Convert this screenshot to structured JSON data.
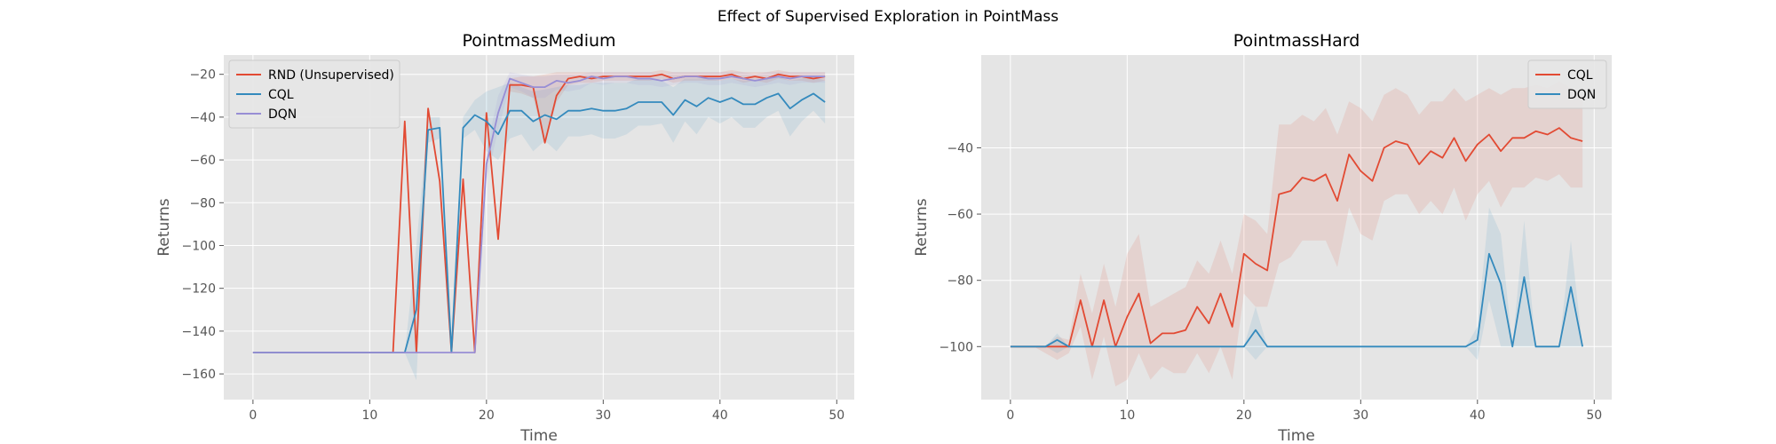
{
  "suptitle": "Effect of Supervised Exploration in PointMass",
  "colors": {
    "red": "#e24a33",
    "blue": "#348abd",
    "purple": "#988ed5",
    "panel_bg": "#e5e5e5",
    "grid": "#ffffff"
  },
  "chart_data": [
    {
      "type": "line",
      "title": "PointmassMedium",
      "xlabel": "Time",
      "ylabel": "Returns",
      "xlim": [
        -2.5,
        51.5
      ],
      "ylim": [
        -172,
        -11
      ],
      "xticks": [
        0,
        10,
        20,
        30,
        40,
        50
      ],
      "yticks": [
        -160,
        -140,
        -120,
        -100,
        -80,
        -60,
        -40,
        -20
      ],
      "grid": true,
      "legend_position": "top-left",
      "x": [
        0,
        1,
        2,
        3,
        4,
        5,
        6,
        7,
        8,
        9,
        10,
        11,
        12,
        13,
        14,
        15,
        16,
        17,
        18,
        19,
        20,
        21,
        22,
        23,
        24,
        25,
        26,
        27,
        28,
        29,
        30,
        31,
        32,
        33,
        34,
        35,
        36,
        37,
        38,
        39,
        40,
        41,
        42,
        43,
        44,
        45,
        46,
        47,
        48,
        49
      ],
      "series": [
        {
          "name": "RND (Unsupervised)",
          "color": "#e24a33",
          "values": [
            -150,
            -150,
            -150,
            -150,
            -150,
            -150,
            -150,
            -150,
            -150,
            -150,
            -150,
            -150,
            -150,
            -42,
            -150,
            -36,
            -70,
            -150,
            -69,
            -150,
            -38,
            -97,
            -25,
            -25,
            -26,
            -52,
            -30,
            -22,
            -21,
            -22,
            -21,
            -21,
            -21,
            -21,
            -21,
            -20,
            -22,
            -21,
            -21,
            -21,
            -21,
            -20,
            -22,
            -21,
            -22,
            -20,
            -21,
            -21,
            -22,
            -21
          ],
          "band_upper": [
            -150,
            -150,
            -150,
            -150,
            -150,
            -150,
            -150,
            -150,
            -150,
            -150,
            -150,
            -150,
            -150,
            -42,
            -150,
            -36,
            -70,
            -150,
            -69,
            -150,
            -38,
            -97,
            -22,
            -21,
            -21,
            -20,
            -19,
            -19,
            -19,
            -19,
            -19,
            -19,
            -19,
            -19,
            -19,
            -18,
            -19,
            -19,
            -19,
            -19,
            -19,
            -18,
            -19,
            -19,
            -19,
            -18,
            -19,
            -19,
            -19,
            -19
          ],
          "band_lower": [
            -150,
            -150,
            -150,
            -150,
            -150,
            -150,
            -150,
            -150,
            -150,
            -150,
            -150,
            -150,
            -150,
            -42,
            -150,
            -36,
            -70,
            -150,
            -69,
            -150,
            -38,
            -97,
            -28,
            -29,
            -31,
            -52,
            -33,
            -25,
            -24,
            -24,
            -23,
            -23,
            -23,
            -23,
            -23,
            -22,
            -24,
            -23,
            -23,
            -23,
            -23,
            -22,
            -24,
            -23,
            -24,
            -22,
            -23,
            -23,
            -24,
            -23
          ]
        },
        {
          "name": "CQL",
          "color": "#348abd",
          "values": [
            -150,
            -150,
            -150,
            -150,
            -150,
            -150,
            -150,
            -150,
            -150,
            -150,
            -150,
            -150,
            -150,
            -150,
            -130,
            -46,
            -45,
            -150,
            -45,
            -39,
            -42,
            -48,
            -37,
            -37,
            -42,
            -39,
            -41,
            -37,
            -37,
            -36,
            -37,
            -37,
            -36,
            -33,
            -33,
            -33,
            -39,
            -32,
            -35,
            -31,
            -33,
            -31,
            -34,
            -34,
            -31,
            -29,
            -36,
            -32,
            -29,
            -33
          ],
          "band_upper": [
            -150,
            -150,
            -150,
            -150,
            -150,
            -150,
            -150,
            -150,
            -150,
            -150,
            -150,
            -150,
            -150,
            -150,
            -100,
            -40,
            -40,
            -150,
            -40,
            -32,
            -28,
            -26,
            -24,
            -26,
            -28,
            -27,
            -26,
            -25,
            -25,
            -24,
            -24,
            -24,
            -24,
            -22,
            -22,
            -23,
            -26,
            -22,
            -22,
            -22,
            -23,
            -22,
            -23,
            -23,
            -22,
            -21,
            -23,
            -22,
            -21,
            -23
          ],
          "band_lower": [
            -150,
            -150,
            -150,
            -150,
            -150,
            -150,
            -150,
            -150,
            -150,
            -150,
            -150,
            -150,
            -150,
            -150,
            -163,
            -52,
            -50,
            -150,
            -50,
            -46,
            -56,
            -60,
            -50,
            -48,
            -56,
            -51,
            -56,
            -49,
            -49,
            -48,
            -50,
            -50,
            -48,
            -44,
            -44,
            -43,
            -52,
            -42,
            -48,
            -40,
            -43,
            -40,
            -45,
            -45,
            -40,
            -37,
            -49,
            -42,
            -37,
            -43
          ]
        },
        {
          "name": "DQN",
          "color": "#988ed5",
          "values": [
            -150,
            -150,
            -150,
            -150,
            -150,
            -150,
            -150,
            -150,
            -150,
            -150,
            -150,
            -150,
            -150,
            -150,
            -150,
            -150,
            -150,
            -150,
            -150,
            -150,
            -62,
            -38,
            -22,
            -24,
            -26,
            -26,
            -23,
            -24,
            -23,
            -21,
            -22,
            -21,
            -21,
            -22,
            -22,
            -23,
            -22,
            -21,
            -21,
            -22,
            -22,
            -21,
            -22,
            -23,
            -22,
            -21,
            -22,
            -21,
            -21,
            -21
          ],
          "band_upper": [
            -150,
            -150,
            -150,
            -150,
            -150,
            -150,
            -150,
            -150,
            -150,
            -150,
            -150,
            -150,
            -150,
            -150,
            -150,
            -150,
            -150,
            -150,
            -150,
            -150,
            -55,
            -30,
            -19,
            -20,
            -21,
            -21,
            -20,
            -20,
            -20,
            -19,
            -19,
            -19,
            -19,
            -19,
            -19,
            -20,
            -19,
            -19,
            -19,
            -19,
            -19,
            -19,
            -19,
            -20,
            -19,
            -19,
            -19,
            -19,
            -19,
            -19
          ],
          "band_lower": [
            -150,
            -150,
            -150,
            -150,
            -150,
            -150,
            -150,
            -150,
            -150,
            -150,
            -150,
            -150,
            -150,
            -150,
            -150,
            -150,
            -150,
            -150,
            -150,
            -150,
            -70,
            -46,
            -26,
            -28,
            -31,
            -31,
            -27,
            -28,
            -27,
            -24,
            -25,
            -24,
            -24,
            -25,
            -25,
            -26,
            -25,
            -24,
            -24,
            -25,
            -25,
            -24,
            -25,
            -26,
            -25,
            -24,
            -25,
            -24,
            -24,
            -24
          ]
        }
      ]
    },
    {
      "type": "line",
      "title": "PointmassHard",
      "xlabel": "Time",
      "ylabel": "Returns",
      "xlim": [
        -2.5,
        51.5
      ],
      "ylim": [
        -116,
        -12
      ],
      "xticks": [
        0,
        10,
        20,
        30,
        40,
        50
      ],
      "yticks": [
        -100,
        -80,
        -60,
        -40
      ],
      "grid": true,
      "legend_position": "top-right",
      "x": [
        0,
        1,
        2,
        3,
        4,
        5,
        6,
        7,
        8,
        9,
        10,
        11,
        12,
        13,
        14,
        15,
        16,
        17,
        18,
        19,
        20,
        21,
        22,
        23,
        24,
        25,
        26,
        27,
        28,
        29,
        30,
        31,
        32,
        33,
        34,
        35,
        36,
        37,
        38,
        39,
        40,
        41,
        42,
        43,
        44,
        45,
        46,
        47,
        48,
        49
      ],
      "series": [
        {
          "name": "CQL",
          "color": "#e24a33",
          "values": [
            -100,
            -100,
            -100,
            -100,
            -100,
            -100,
            -86,
            -100,
            -86,
            -100,
            -91,
            -84,
            -99,
            -96,
            -96,
            -95,
            -88,
            -93,
            -84,
            -94,
            -72,
            -75,
            -77,
            -54,
            -53,
            -49,
            -50,
            -48,
            -56,
            -42,
            -47,
            -50,
            -40,
            -38,
            -39,
            -45,
            -41,
            -43,
            -37,
            -44,
            -39,
            -36,
            -41,
            -37,
            -37,
            -35,
            -36,
            -34,
            -37,
            -38
          ],
          "band_upper": [
            -100,
            -100,
            -100,
            -100,
            -97,
            -98,
            -78,
            -90,
            -75,
            -88,
            -72,
            -66,
            -88,
            -86,
            -84,
            -82,
            -74,
            -78,
            -68,
            -78,
            -60,
            -62,
            -66,
            -33,
            -33,
            -30,
            -32,
            -28,
            -36,
            -26,
            -28,
            -32,
            -24,
            -22,
            -24,
            -30,
            -26,
            -26,
            -22,
            -26,
            -24,
            -22,
            -24,
            -22,
            -22,
            -21,
            -22,
            -20,
            -22,
            -24
          ],
          "band_lower": [
            -100,
            -100,
            -100,
            -102,
            -104,
            -102,
            -94,
            -110,
            -97,
            -112,
            -110,
            -102,
            -110,
            -106,
            -108,
            -108,
            -102,
            -108,
            -100,
            -110,
            -84,
            -88,
            -88,
            -75,
            -73,
            -68,
            -68,
            -68,
            -76,
            -58,
            -66,
            -68,
            -56,
            -54,
            -54,
            -60,
            -56,
            -60,
            -52,
            -62,
            -54,
            -50,
            -58,
            -52,
            -52,
            -49,
            -50,
            -48,
            -52,
            -52
          ]
        },
        {
          "name": "DQN",
          "color": "#348abd",
          "values": [
            -100,
            -100,
            -100,
            -100,
            -98,
            -100,
            -100,
            -100,
            -100,
            -100,
            -100,
            -100,
            -100,
            -100,
            -100,
            -100,
            -100,
            -100,
            -100,
            -100,
            -100,
            -95,
            -100,
            -100,
            -100,
            -100,
            -100,
            -100,
            -100,
            -100,
            -100,
            -100,
            -100,
            -100,
            -100,
            -100,
            -100,
            -100,
            -100,
            -100,
            -98,
            -72,
            -81,
            -100,
            -79,
            -100,
            -100,
            -100,
            -82,
            -100
          ],
          "band_upper": [
            -100,
            -100,
            -100,
            -100,
            -96,
            -100,
            -100,
            -100,
            -100,
            -100,
            -100,
            -100,
            -100,
            -100,
            -100,
            -100,
            -100,
            -100,
            -100,
            -100,
            -100,
            -88,
            -100,
            -100,
            -100,
            -100,
            -100,
            -100,
            -100,
            -100,
            -100,
            -100,
            -100,
            -100,
            -100,
            -100,
            -100,
            -100,
            -100,
            -100,
            -94,
            -58,
            -66,
            -100,
            -62,
            -100,
            -100,
            -100,
            -68,
            -100
          ],
          "band_lower": [
            -100,
            -100,
            -100,
            -100,
            -102,
            -100,
            -100,
            -100,
            -100,
            -100,
            -100,
            -100,
            -100,
            -100,
            -100,
            -100,
            -100,
            -100,
            -100,
            -100,
            -100,
            -104,
            -100,
            -100,
            -100,
            -100,
            -100,
            -100,
            -100,
            -100,
            -100,
            -100,
            -100,
            -100,
            -100,
            -100,
            -100,
            -100,
            -100,
            -100,
            -104,
            -86,
            -100,
            -100,
            -100,
            -100,
            -100,
            -100,
            -100,
            -100
          ]
        }
      ]
    }
  ]
}
